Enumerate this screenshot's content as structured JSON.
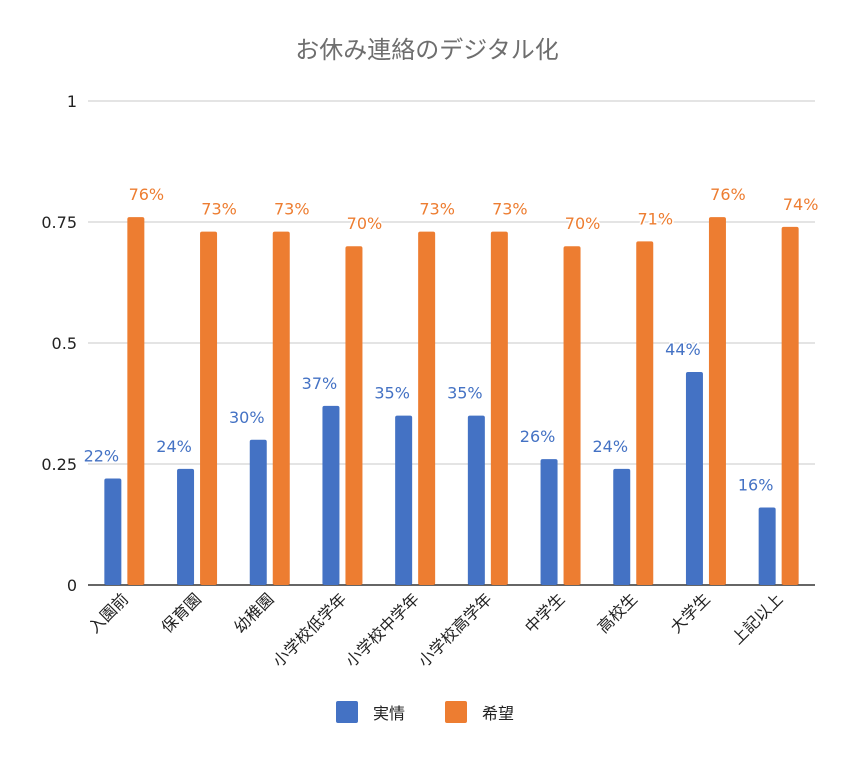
{
  "chart_data": {
    "type": "bar",
    "title": "お休み連絡のデジタル化",
    "categories": [
      "入園前",
      "保育園",
      "幼稚園",
      "小学校低学年",
      "小学校中学年",
      "小学校高学年",
      "中学生",
      "高校生",
      "大学生",
      "上記以上"
    ],
    "series": [
      {
        "name": "実情",
        "color": "#4472c4",
        "values": [
          0.22,
          0.24,
          0.3,
          0.37,
          0.35,
          0.35,
          0.26,
          0.24,
          0.44,
          0.16
        ],
        "labels": [
          "22%",
          "24%",
          "30%",
          "37%",
          "35%",
          "35%",
          "26%",
          "24%",
          "44%",
          "16%"
        ]
      },
      {
        "name": "希望",
        "color": "#ed7d31",
        "values": [
          0.76,
          0.73,
          0.73,
          0.7,
          0.73,
          0.73,
          0.7,
          0.71,
          0.76,
          0.74
        ],
        "labels": [
          "76%",
          "73%",
          "73%",
          "70%",
          "73%",
          "73%",
          "70%",
          "71%",
          "76%",
          "74%"
        ]
      }
    ],
    "yticks": [
      0,
      0.25,
      0.5,
      0.75,
      1
    ],
    "ytick_labels": [
      "0",
      "0.25",
      "0.5",
      "0.75",
      "1"
    ],
    "ylim": [
      0,
      1
    ],
    "xlabel": "",
    "ylabel": "",
    "grid": true,
    "legend": "bottom"
  }
}
